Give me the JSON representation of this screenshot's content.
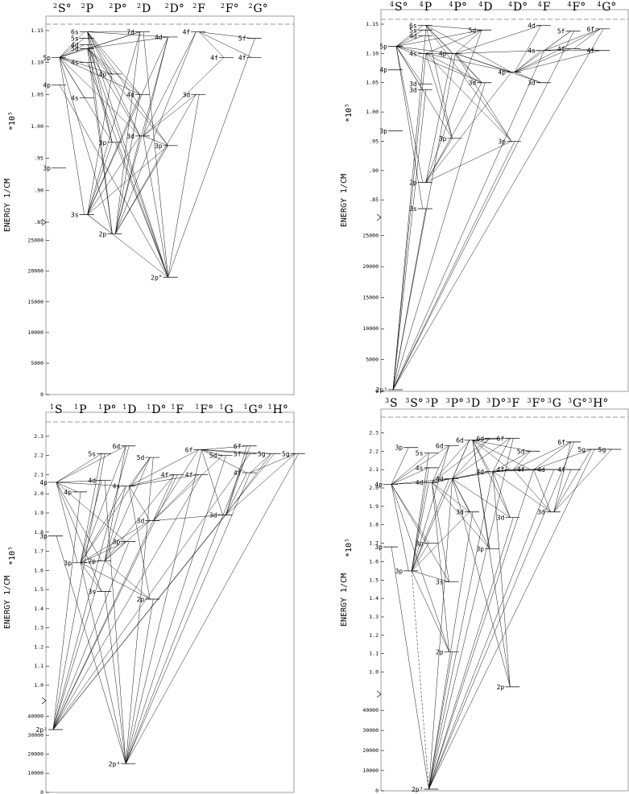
{
  "panels": [
    {
      "id": "tl",
      "headers": [
        [
          "2",
          "S°"
        ],
        [
          "2",
          "P"
        ],
        [
          "2",
          "P°"
        ],
        [
          "2",
          "D"
        ],
        [
          "2",
          "D°"
        ],
        [
          "2",
          "F"
        ],
        [
          "2",
          "F°"
        ],
        [
          "2",
          "G°"
        ]
      ],
      "ylabel": "ENERGY  1/CM",
      "scale_label": "*10⁵",
      "upper_ticks": [
        ".85",
        ".90",
        ".95",
        "1.00",
        "1.05",
        "1.10",
        "1.15"
      ],
      "lower_ticks": [
        "0",
        "5000",
        "10000",
        "15000",
        "20000",
        "25000"
      ],
      "levels": [
        {
          "label": "5p",
          "col": 0,
          "e": 1.108
        },
        {
          "label": "4p",
          "col": 0,
          "e": 1.065
        },
        {
          "label": "3p",
          "col": 0,
          "e": 0.935
        },
        {
          "label": "6s",
          "col": 1,
          "e": 1.148
        },
        {
          "label": "5s",
          "col": 1,
          "e": 1.138
        },
        {
          "label": "4d",
          "col": 1,
          "e": 1.128
        },
        {
          "label": "5d",
          "col": 1,
          "e": 1.122
        },
        {
          "label": "4s",
          "col": 1,
          "e": 1.1
        },
        {
          "label": "4s",
          "col": 1,
          "e": 1.045
        },
        {
          "label": "3s",
          "col": 1,
          "e": 0.862
        },
        {
          "label": "4p",
          "col": 2,
          "e": 1.082
        },
        {
          "label": "3p",
          "col": 2,
          "e": 0.975
        },
        {
          "label": "2p",
          "col": 2,
          "e": 0.832
        },
        {
          "label": "7d",
          "col": 3,
          "e": 1.148
        },
        {
          "label": "4d",
          "col": 3,
          "e": 1.05
        },
        {
          "label": "3d",
          "col": 3,
          "e": 0.985
        },
        {
          "label": "4d",
          "col": 4,
          "e": 1.14
        },
        {
          "label": "3p",
          "col": 4,
          "e": 0.97
        },
        {
          "label": "4f",
          "col": 5,
          "e": 1.148
        },
        {
          "label": "3d",
          "col": 5,
          "e": 1.05
        },
        {
          "label": "4f",
          "col": 6,
          "e": 1.108
        },
        {
          "label": "5f",
          "col": 7,
          "e": 1.138
        },
        {
          "label": "4f",
          "col": 7,
          "e": 1.108
        }
      ],
      "ground": {
        "label": "2p°",
        "col": 4,
        "e": 19000
      }
    },
    {
      "id": "tr",
      "headers": [
        [
          "4",
          "S°"
        ],
        [
          "4",
          "P"
        ],
        [
          "4",
          "P°"
        ],
        [
          "4",
          "D"
        ],
        [
          "4",
          "D°"
        ],
        [
          "4",
          "F"
        ],
        [
          "4",
          "F°"
        ],
        [
          "4",
          "G°"
        ]
      ],
      "ylabel": "ENERGY  1/CM",
      "scale_label": "*10⁵",
      "upper_ticks": [
        ".85",
        ".90",
        ".95",
        "1.00",
        "1.05",
        "1.10",
        "1.15"
      ],
      "lower_ticks": [
        "0",
        "5000",
        "10000",
        "15000",
        "20000",
        "25000"
      ],
      "levels": [
        {
          "label": "5p",
          "col": 0,
          "e": 1.112
        },
        {
          "label": "4p",
          "col": 0,
          "e": 1.072
        },
        {
          "label": "3p",
          "col": 0,
          "e": 0.968
        },
        {
          "label": "6s",
          "col": 1,
          "e": 1.148
        },
        {
          "label": "5s",
          "col": 1,
          "e": 1.14
        },
        {
          "label": "4d",
          "col": 1,
          "e": 1.13
        },
        {
          "label": "4s",
          "col": 1,
          "e": 1.1
        },
        {
          "label": "3d",
          "col": 1,
          "e": 1.048
        },
        {
          "label": "3d",
          "col": 1,
          "e": 1.038
        },
        {
          "label": "2p",
          "col": 1,
          "e": 0.88
        },
        {
          "label": "3s",
          "col": 1,
          "e": 0.835
        },
        {
          "label": "3p",
          "col": 2,
          "e": 0.955
        },
        {
          "label": "4p",
          "col": 2,
          "e": 1.1
        },
        {
          "label": "5d",
          "col": 3,
          "e": 1.14
        },
        {
          "label": "3d",
          "col": 3,
          "e": 1.05
        },
        {
          "label": "4p",
          "col": 4,
          "e": 1.068
        },
        {
          "label": "3p",
          "col": 4,
          "e": 0.95
        },
        {
          "label": "4d",
          "col": 5,
          "e": 1.148
        },
        {
          "label": "4s",
          "col": 5,
          "e": 1.105
        },
        {
          "label": "3d",
          "col": 5,
          "e": 1.05
        },
        {
          "label": "5f",
          "col": 6,
          "e": 1.138
        },
        {
          "label": "4f",
          "col": 6,
          "e": 1.108
        },
        {
          "label": "6f",
          "col": 7,
          "e": 1.142
        },
        {
          "label": "4f",
          "col": 7,
          "e": 1.105
        }
      ],
      "ground": {
        "label": "2p³",
        "col": 0,
        "e": 0
      }
    },
    {
      "id": "bl",
      "headers": [
        [
          "1",
          "S"
        ],
        [
          "1",
          "P"
        ],
        [
          "1",
          "P°"
        ],
        [
          "1",
          "D"
        ],
        [
          "1",
          "D°"
        ],
        [
          "1",
          "F"
        ],
        [
          "1",
          "F°"
        ],
        [
          "1",
          "G"
        ],
        [
          "1",
          "G°"
        ],
        [
          "1",
          "H°"
        ]
      ],
      "ylabel": "ENERGY  1/CM",
      "scale_label": "*10⁵",
      "upper_ticks": [
        "1.0",
        "1.1",
        "1.2",
        "1.3",
        "1.4",
        "1.5",
        "1.6",
        "1.7",
        "1.8",
        "1.9",
        "2.0",
        "2.1",
        "2.2",
        "2.3"
      ],
      "lower_ticks": [
        "0",
        "10000",
        "20000",
        "30000",
        "40000"
      ],
      "levels": [
        {
          "label": "4p",
          "col": 0,
          "e": 2.06
        },
        {
          "label": "3p",
          "col": 0,
          "e": 1.78
        },
        {
          "label": "4p",
          "col": 1,
          "e": 2.01
        },
        {
          "label": "3p",
          "col": 1,
          "e": 1.64
        },
        {
          "label": "5s",
          "col": 2,
          "e": 2.21
        },
        {
          "label": "4d",
          "col": 2,
          "e": 2.07
        },
        {
          "label": "2p",
          "col": 2,
          "e": 1.65
        },
        {
          "label": "3s",
          "col": 2,
          "e": 1.49
        },
        {
          "label": "6d",
          "col": 3,
          "e": 2.25
        },
        {
          "label": "4s",
          "col": 3,
          "e": 2.04
        },
        {
          "label": "3p",
          "col": 3,
          "e": 1.75
        },
        {
          "label": "5d",
          "col": 4,
          "e": 2.19
        },
        {
          "label": "3d",
          "col": 4,
          "e": 1.86
        },
        {
          "label": "2p",
          "col": 4,
          "e": 1.45
        },
        {
          "label": "4f",
          "col": 5,
          "e": 2.1
        },
        {
          "label": "6f",
          "col": 6,
          "e": 2.23
        },
        {
          "label": "4f",
          "col": 6,
          "e": 2.1
        },
        {
          "label": "5d",
          "col": 7,
          "e": 2.2
        },
        {
          "label": "3d",
          "col": 7,
          "e": 1.89
        },
        {
          "label": "6f",
          "col": 8,
          "e": 2.25
        },
        {
          "label": "5f",
          "col": 8,
          "e": 2.21
        },
        {
          "label": "4f",
          "col": 8,
          "e": 2.11
        },
        {
          "label": "5g",
          "col": 9,
          "e": 2.21
        },
        {
          "label": "5g",
          "col": 10,
          "e": 2.21
        }
      ],
      "ground_levels": [
        {
          "label": "2p²",
          "col": 0,
          "e": 33000
        },
        {
          "label": "2p³",
          "col": 3,
          "e": 15000
        }
      ]
    },
    {
      "id": "br",
      "headers": [
        [
          "3",
          "S"
        ],
        [
          "3",
          "S°"
        ],
        [
          "3",
          "P"
        ],
        [
          "3",
          "P°"
        ],
        [
          "3",
          "D"
        ],
        [
          "3",
          "D°"
        ],
        [
          "3",
          "F"
        ],
        [
          "3",
          "F°"
        ],
        [
          "3",
          "G"
        ],
        [
          "3",
          "G°"
        ],
        [
          "3",
          "H°"
        ]
      ],
      "ylabel": "ENERGY  1/CM",
      "scale_label": "*10⁵",
      "upper_ticks": [
        "1.0",
        "1.1",
        "1.2",
        "1.3",
        "1.4",
        "1.5",
        "1.6",
        "1.7",
        "1.8",
        "1.9",
        "2.0",
        "2.1",
        "2.2",
        "2.3"
      ],
      "lower_ticks": [
        "0",
        "10000",
        "20000",
        "30000",
        "40000"
      ],
      "levels": [
        {
          "label": "4p",
          "col": 0,
          "e": 2.02
        },
        {
          "label": "3p",
          "col": 0,
          "e": 1.68
        },
        {
          "label": "3p",
          "col": 1,
          "e": 2.22
        },
        {
          "label": "3p",
          "col": 1,
          "e": 1.55
        },
        {
          "label": "5s",
          "col": 2,
          "e": 2.19
        },
        {
          "label": "4s",
          "col": 2,
          "e": 2.11
        },
        {
          "label": "4d",
          "col": 2,
          "e": 2.03
        },
        {
          "label": "3p",
          "col": 2,
          "e": 1.7
        },
        {
          "label": "6d",
          "col": 3,
          "e": 2.23
        },
        {
          "label": "4d",
          "col": 3,
          "e": 2.05
        },
        {
          "label": "3s",
          "col": 3,
          "e": 1.49
        },
        {
          "label": "2p",
          "col": 3,
          "e": 1.11
        },
        {
          "label": "6d",
          "col": 4,
          "e": 2.26
        },
        {
          "label": "3d",
          "col": 4,
          "e": 1.87
        },
        {
          "label": "6d",
          "col": 5,
          "e": 2.27
        },
        {
          "label": "4d",
          "col": 5,
          "e": 2.09
        },
        {
          "label": "3p",
          "col": 5,
          "e": 1.67
        },
        {
          "label": "6f",
          "col": 6,
          "e": 2.27
        },
        {
          "label": "4f",
          "col": 6,
          "e": 2.1
        },
        {
          "label": "3d",
          "col": 6,
          "e": 1.84
        },
        {
          "label": "2p",
          "col": 6,
          "e": 0.92
        },
        {
          "label": "4f",
          "col": 7,
          "e": 2.1
        },
        {
          "label": "5d",
          "col": 7,
          "e": 2.2
        },
        {
          "label": "4d",
          "col": 8,
          "e": 2.1
        },
        {
          "label": "3d",
          "col": 8,
          "e": 1.87
        },
        {
          "label": "6f",
          "col": 9,
          "e": 2.25
        },
        {
          "label": "4f",
          "col": 9,
          "e": 2.1
        },
        {
          "label": "5g",
          "col": 10,
          "e": 2.21
        },
        {
          "label": "5g",
          "col": 11,
          "e": 2.21
        }
      ],
      "ground": {
        "label": "2p³",
        "col": 2,
        "e": 0
      }
    }
  ]
}
